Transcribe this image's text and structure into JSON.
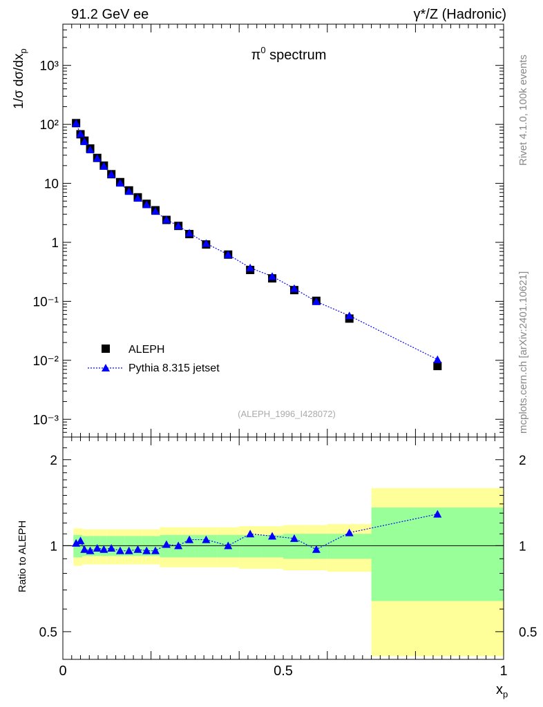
{
  "header": {
    "left": "91.2 GeV ee",
    "right": "γ*/Z (Hadronic)"
  },
  "side_labels": {
    "rivet": "Rivet 4.1.0,  100k events",
    "mcplots": "mcplots.cern.ch [arXiv:2401.10621]"
  },
  "main_plot": {
    "title": "π⁰ spectrum",
    "ylabel": "1/σ  dσ/dx_p",
    "watermark": "(ALEPH_1996_I428072)",
    "y_tick_labels": [
      "10⁻³",
      "10⁻²",
      "10⁻¹",
      "1",
      "10",
      "10²",
      "10³"
    ]
  },
  "ratio_plot": {
    "ylabel": "Ratio to ALEPH",
    "y_tick_labels": [
      "0.5",
      "1",
      "2"
    ],
    "x_tick_labels": [
      "0",
      "0.5",
      "1"
    ],
    "xlabel": "x_p"
  },
  "legend": {
    "data_label": "ALEPH",
    "mc_label": "Pythia 8.315 jetset"
  },
  "colors": {
    "data": "#000000",
    "mc": "#0000ff",
    "band_inner": "#99ff99",
    "band_outer": "#ffff99"
  },
  "chart_data": {
    "type": "scatter",
    "title": "π⁰ spectrum",
    "xlabel": "x_p",
    "ylabel": "1/σ dσ/dx_p",
    "xlim": [
      0,
      1
    ],
    "ylim": [
      0.0005,
      5000
    ],
    "yscale": "log",
    "ratio_ylim": [
      0.4,
      2.4
    ],
    "bins": [
      {
        "lo": 0.024,
        "hi": 0.036,
        "x": 0.03,
        "data": 105,
        "mc": 104,
        "ratio": 1.02,
        "inner": 0.09,
        "outer": 0.15
      },
      {
        "lo": 0.036,
        "hi": 0.044,
        "x": 0.04,
        "data": 68,
        "mc": 69,
        "ratio": 1.04,
        "inner": 0.09,
        "outer": 0.15
      },
      {
        "lo": 0.044,
        "hi": 0.054,
        "x": 0.049,
        "data": 53,
        "mc": 51,
        "ratio": 0.97,
        "inner": 0.08,
        "outer": 0.14
      },
      {
        "lo": 0.054,
        "hi": 0.07,
        "x": 0.062,
        "data": 39,
        "mc": 37,
        "ratio": 0.96,
        "inner": 0.08,
        "outer": 0.14
      },
      {
        "lo": 0.07,
        "hi": 0.086,
        "x": 0.078,
        "data": 27,
        "mc": 26.5,
        "ratio": 0.98,
        "inner": 0.08,
        "outer": 0.14
      },
      {
        "lo": 0.086,
        "hi": 0.1,
        "x": 0.093,
        "data": 20,
        "mc": 19.5,
        "ratio": 0.97,
        "inner": 0.08,
        "outer": 0.14
      },
      {
        "lo": 0.1,
        "hi": 0.12,
        "x": 0.11,
        "data": 14.3,
        "mc": 14.2,
        "ratio": 0.98,
        "inner": 0.08,
        "outer": 0.14
      },
      {
        "lo": 0.12,
        "hi": 0.14,
        "x": 0.13,
        "data": 10.5,
        "mc": 10.1,
        "ratio": 0.96,
        "inner": 0.08,
        "outer": 0.14
      },
      {
        "lo": 0.14,
        "hi": 0.16,
        "x": 0.15,
        "data": 7.6,
        "mc": 7.3,
        "ratio": 0.96,
        "inner": 0.08,
        "outer": 0.14
      },
      {
        "lo": 0.16,
        "hi": 0.18,
        "x": 0.17,
        "data": 5.8,
        "mc": 5.6,
        "ratio": 0.97,
        "inner": 0.08,
        "outer": 0.14
      },
      {
        "lo": 0.18,
        "hi": 0.2,
        "x": 0.19,
        "data": 4.5,
        "mc": 4.35,
        "ratio": 0.96,
        "inner": 0.08,
        "outer": 0.14
      },
      {
        "lo": 0.2,
        "hi": 0.22,
        "x": 0.21,
        "data": 3.5,
        "mc": 3.35,
        "ratio": 0.96,
        "inner": 0.08,
        "outer": 0.14
      },
      {
        "lo": 0.22,
        "hi": 0.25,
        "x": 0.235,
        "data": 2.4,
        "mc": 2.42,
        "ratio": 1.01,
        "inner": 0.09,
        "outer": 0.16
      },
      {
        "lo": 0.25,
        "hi": 0.275,
        "x": 0.262,
        "data": 1.9,
        "mc": 1.9,
        "ratio": 1.0,
        "inner": 0.09,
        "outer": 0.16
      },
      {
        "lo": 0.275,
        "hi": 0.3,
        "x": 0.287,
        "data": 1.38,
        "mc": 1.44,
        "ratio": 1.05,
        "inner": 0.09,
        "outer": 0.16
      },
      {
        "lo": 0.3,
        "hi": 0.35,
        "x": 0.325,
        "data": 0.92,
        "mc": 0.96,
        "ratio": 1.05,
        "inner": 0.09,
        "outer": 0.16
      },
      {
        "lo": 0.35,
        "hi": 0.4,
        "x": 0.375,
        "data": 0.62,
        "mc": 0.62,
        "ratio": 1.0,
        "inner": 0.09,
        "outer": 0.16
      },
      {
        "lo": 0.4,
        "hi": 0.45,
        "x": 0.425,
        "data": 0.34,
        "mc": 0.37,
        "ratio": 1.1,
        "inner": 0.09,
        "outer": 0.17
      },
      {
        "lo": 0.45,
        "hi": 0.5,
        "x": 0.475,
        "data": 0.245,
        "mc": 0.265,
        "ratio": 1.08,
        "inner": 0.09,
        "outer": 0.17
      },
      {
        "lo": 0.5,
        "hi": 0.55,
        "x": 0.525,
        "data": 0.155,
        "mc": 0.165,
        "ratio": 1.06,
        "inner": 0.1,
        "outer": 0.18
      },
      {
        "lo": 0.55,
        "hi": 0.6,
        "x": 0.575,
        "data": 0.102,
        "mc": 0.099,
        "ratio": 0.97,
        "inner": 0.1,
        "outer": 0.18
      },
      {
        "lo": 0.6,
        "hi": 0.7,
        "x": 0.65,
        "data": 0.051,
        "mc": 0.057,
        "ratio": 1.11,
        "inner": 0.1,
        "outer": 0.19
      },
      {
        "lo": 0.7,
        "hi": 1.0,
        "x": 0.85,
        "data": 0.008,
        "mc": 0.0103,
        "ratio": 1.29,
        "inner": 0.36,
        "outer": 0.59
      }
    ]
  }
}
